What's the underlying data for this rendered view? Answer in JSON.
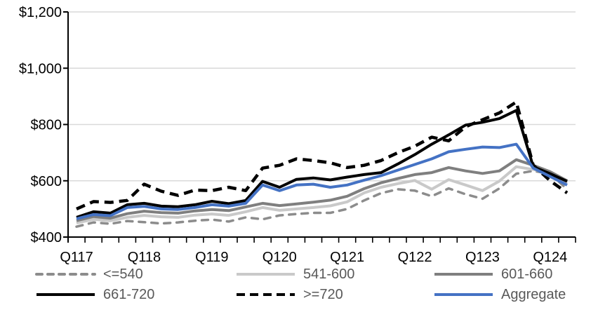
{
  "chart_data": {
    "type": "line",
    "title": "",
    "xlabel": "",
    "ylabel": "",
    "ylim": [
      400,
      1200
    ],
    "grid": "horizontal",
    "legend_position": "bottom",
    "y_ticks": [
      "$400",
      "$600",
      "$800",
      "$1,000",
      "$1,200"
    ],
    "y_tick_values": [
      400,
      600,
      800,
      1000,
      1200
    ],
    "x_tick_labels": [
      "Q117",
      "Q118",
      "Q119",
      "Q120",
      "Q121",
      "Q122",
      "Q123",
      "Q124"
    ],
    "x_quarters": [
      "Q117",
      "Q217",
      "Q317",
      "Q417",
      "Q118",
      "Q218",
      "Q318",
      "Q418",
      "Q119",
      "Q219",
      "Q319",
      "Q419",
      "Q120",
      "Q220",
      "Q320",
      "Q420",
      "Q121",
      "Q221",
      "Q321",
      "Q421",
      "Q122",
      "Q222",
      "Q322",
      "Q422",
      "Q123",
      "Q223",
      "Q323",
      "Q423",
      "Q124",
      "Q224"
    ],
    "series": [
      {
        "name": "<=540",
        "color": "#8C8C8C",
        "dash": "dashed",
        "values": [
          437,
          452,
          447,
          457,
          453,
          448,
          452,
          458,
          462,
          455,
          470,
          463,
          477,
          482,
          486,
          486,
          500,
          530,
          556,
          570,
          565,
          545,
          573,
          552,
          536,
          573,
          625,
          635,
          625,
          570
        ]
      },
      {
        "name": "541-600",
        "color": "#C9C9C9",
        "dash": "solid",
        "values": [
          450,
          463,
          458,
          470,
          477,
          472,
          470,
          478,
          482,
          477,
          490,
          505,
          495,
          500,
          505,
          511,
          525,
          557,
          577,
          590,
          601,
          570,
          604,
          585,
          565,
          599,
          650,
          640,
          628,
          593
        ]
      },
      {
        "name": "601-660",
        "color": "#7F7F7F",
        "dash": "solid",
        "values": [
          458,
          473,
          467,
          483,
          492,
          487,
          485,
          493,
          498,
          494,
          507,
          520,
          512,
          518,
          524,
          531,
          545,
          572,
          593,
          608,
          622,
          629,
          647,
          635,
          626,
          635,
          675,
          655,
          632,
          600
        ]
      },
      {
        "name": "661-720",
        "color": "#000000",
        "dash": "solid",
        "values": [
          470,
          490,
          485,
          515,
          520,
          510,
          508,
          515,
          527,
          519,
          530,
          598,
          577,
          605,
          610,
          603,
          613,
          622,
          629,
          660,
          693,
          730,
          763,
          798,
          808,
          821,
          850,
          650,
          625,
          598
        ]
      },
      {
        "name": ">=720",
        "color": "#000000",
        "dash": "long-dash",
        "values": [
          500,
          526,
          523,
          530,
          588,
          563,
          548,
          567,
          565,
          577,
          565,
          645,
          655,
          678,
          672,
          664,
          647,
          655,
          672,
          700,
          723,
          755,
          742,
          792,
          817,
          841,
          880,
          655,
          600,
          557
        ]
      },
      {
        "name": "Aggregate",
        "color": "#4472C4",
        "dash": "solid",
        "values": [
          465,
          480,
          476,
          505,
          509,
          500,
          498,
          505,
          515,
          510,
          520,
          585,
          565,
          585,
          588,
          577,
          585,
          602,
          618,
          638,
          658,
          678,
          703,
          712,
          720,
          718,
          730,
          645,
          615,
          585
        ]
      }
    ]
  },
  "colors": {
    "background": "#FFFFFF",
    "gridline": "#D9D9D9",
    "axis": "#000000",
    "tick_label": "#000000",
    "legend_text": "#595959",
    "accent_blue": "#4472C4"
  }
}
